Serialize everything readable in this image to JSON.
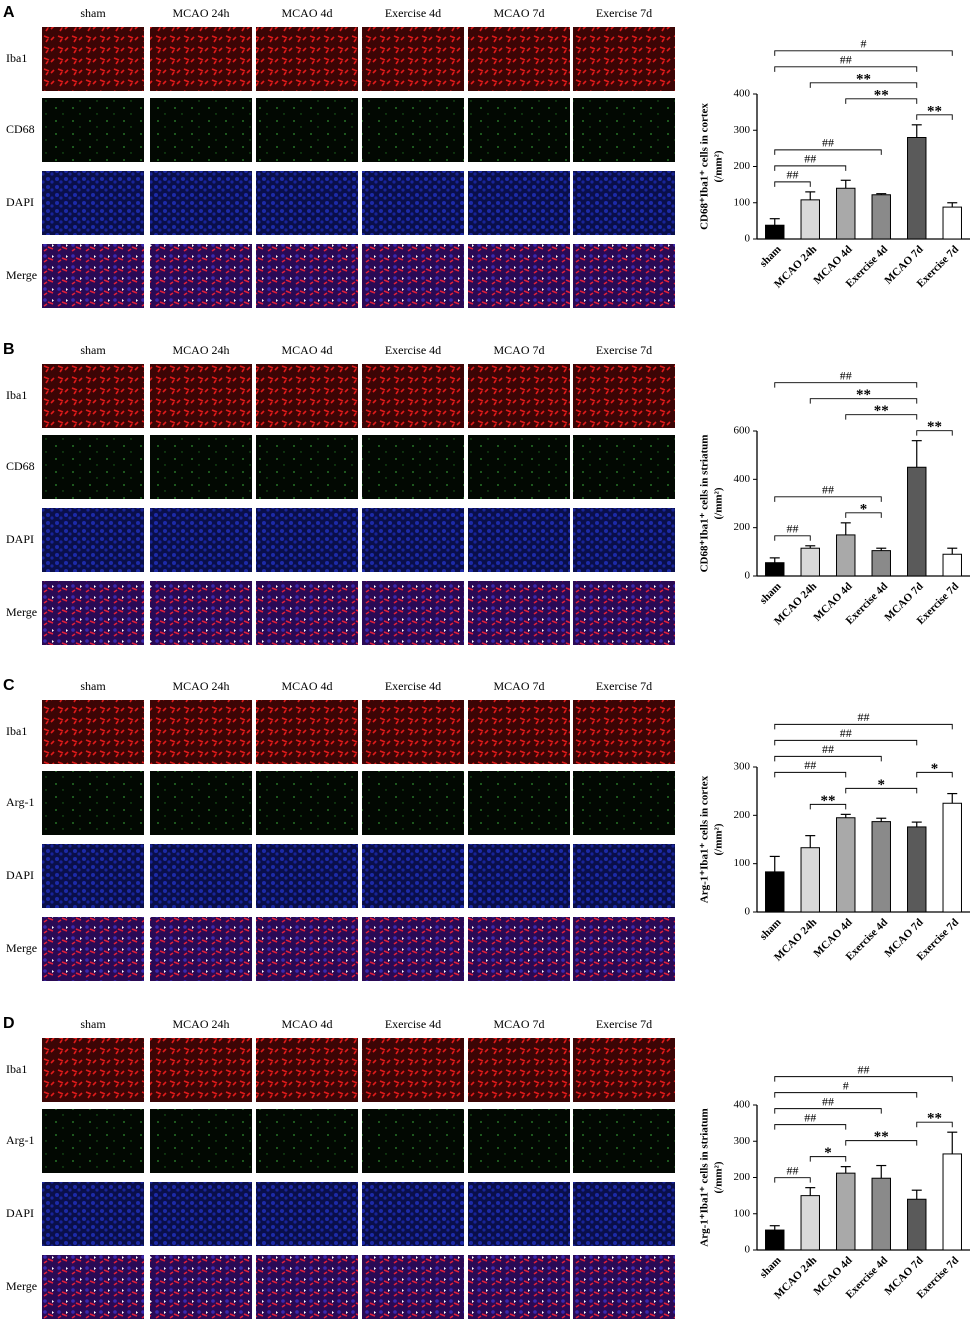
{
  "panels": [
    {
      "label": "A",
      "columns": [
        "sham",
        "MCAO 24h",
        "MCAO 4d",
        "Exercise 4d",
        "MCAO 7d",
        "Exercise 7d"
      ],
      "rows": [
        "Iba1",
        "CD68",
        "DAPI",
        "Merge"
      ]
    },
    {
      "label": "B",
      "columns": [
        "sham",
        "MCAO 24h",
        "MCAO 4d",
        "Exercise 4d",
        "MCAO 7d",
        "Exercise 7d"
      ],
      "rows": [
        "Iba1",
        "CD68",
        "DAPI",
        "Merge"
      ]
    },
    {
      "label": "C",
      "columns": [
        "sham",
        "MCAO 24h",
        "MCAO 4d",
        "Exercise 4d",
        "MCAO 7d",
        "Exercise 7d"
      ],
      "rows": [
        "Iba1",
        "Arg-1",
        "DAPI",
        "Merge"
      ]
    },
    {
      "label": "D",
      "columns": [
        "sham",
        "MCAO 24h",
        "MCAO 4d",
        "Exercise 4d",
        "MCAO 7d",
        "Exercise 7d"
      ],
      "rows": [
        "Iba1",
        "Arg-1",
        "DAPI",
        "Merge"
      ]
    }
  ],
  "chart_data": [
    {
      "type": "bar",
      "ylabel": "CD68⁺Iba1⁺ cells in cortex",
      "yunit": "(/mm²)",
      "categories": [
        "sham",
        "MCAO 24h",
        "MCAO 4d",
        "Exercise 4d",
        "MCAO 7d",
        "Exercise 7d"
      ],
      "values": [
        38,
        108,
        140,
        122,
        280,
        88
      ],
      "errors": [
        18,
        22,
        22,
        3,
        35,
        12
      ],
      "colors": [
        "#000000",
        "#d9d9d9",
        "#a9a9a9",
        "#8a8a8a",
        "#5a5a5a",
        "#ffffff"
      ],
      "ylim": [
        0,
        400
      ],
      "yticks": [
        0,
        100,
        200,
        300,
        400
      ],
      "brackets": [
        {
          "pair": [
            0,
            1
          ],
          "label": "##"
        },
        {
          "pair": [
            0,
            2
          ],
          "label": "##"
        },
        {
          "pair": [
            0,
            3
          ],
          "label": "##"
        },
        {
          "pair": [
            4,
            5
          ],
          "label": "**"
        },
        {
          "pair": [
            2,
            4
          ],
          "label": "**"
        },
        {
          "pair": [
            1,
            4
          ],
          "label": "**"
        },
        {
          "pair": [
            0,
            4
          ],
          "label": "##"
        },
        {
          "pair": [
            0,
            5
          ],
          "label": "#"
        }
      ]
    },
    {
      "type": "bar",
      "ylabel": "CD68⁺Iba1⁺ cells in striatum",
      "yunit": "(/mm²)",
      "categories": [
        "sham",
        "MCAO 24h",
        "MCAO 4d",
        "Exercise 4d",
        "MCAO 7d",
        "Exercise 7d"
      ],
      "values": [
        55,
        115,
        170,
        105,
        450,
        90
      ],
      "errors": [
        20,
        10,
        50,
        10,
        110,
        25
      ],
      "colors": [
        "#000000",
        "#d9d9d9",
        "#a9a9a9",
        "#8a8a8a",
        "#5a5a5a",
        "#ffffff"
      ],
      "ylim": [
        0,
        600
      ],
      "yticks": [
        0,
        200,
        400,
        600
      ],
      "brackets": [
        {
          "pair": [
            0,
            1
          ],
          "label": "##"
        },
        {
          "pair": [
            2,
            3
          ],
          "label": "*"
        },
        {
          "pair": [
            0,
            3
          ],
          "label": "##"
        },
        {
          "pair": [
            4,
            5
          ],
          "label": "**"
        },
        {
          "pair": [
            2,
            4
          ],
          "label": "**"
        },
        {
          "pair": [
            1,
            4
          ],
          "label": "**"
        },
        {
          "pair": [
            0,
            4
          ],
          "label": "##"
        }
      ]
    },
    {
      "type": "bar",
      "ylabel": "Arg-1⁺Iba1⁺ cells in cortex",
      "yunit": "(/mm²)",
      "categories": [
        "sham",
        "MCAO 24h",
        "MCAO 4d",
        "Exercise 4d",
        "MCAO 7d",
        "Exercise 7d"
      ],
      "values": [
        83,
        133,
        195,
        187,
        176,
        225
      ],
      "errors": [
        32,
        25,
        7,
        7,
        10,
        20
      ],
      "colors": [
        "#000000",
        "#d9d9d9",
        "#a9a9a9",
        "#8a8a8a",
        "#5a5a5a",
        "#ffffff"
      ],
      "ylim": [
        0,
        300
      ],
      "yticks": [
        0,
        100,
        200,
        300
      ],
      "brackets": [
        {
          "pair": [
            1,
            2
          ],
          "label": "**"
        },
        {
          "pair": [
            2,
            4
          ],
          "label": "*"
        },
        {
          "pair": [
            0,
            2
          ],
          "label": "##"
        },
        {
          "pair": [
            4,
            5
          ],
          "label": "*"
        },
        {
          "pair": [
            0,
            3
          ],
          "label": "##"
        },
        {
          "pair": [
            0,
            4
          ],
          "label": "##"
        },
        {
          "pair": [
            0,
            5
          ],
          "label": "##"
        }
      ]
    },
    {
      "type": "bar",
      "ylabel": "Arg-1⁺Iba1⁺ cells in striatum",
      "yunit": "(/mm²)",
      "categories": [
        "sham",
        "MCAO 24h",
        "MCAO 4d",
        "Exercise 4d",
        "MCAO 7d",
        "Exercise 7d"
      ],
      "values": [
        55,
        150,
        212,
        198,
        140,
        265
      ],
      "errors": [
        12,
        22,
        18,
        35,
        25,
        60
      ],
      "colors": [
        "#000000",
        "#d9d9d9",
        "#a9a9a9",
        "#8a8a8a",
        "#5a5a5a",
        "#ffffff"
      ],
      "ylim": [
        0,
        400
      ],
      "yticks": [
        0,
        100,
        200,
        300,
        400
      ],
      "brackets": [
        {
          "pair": [
            0,
            1
          ],
          "label": "##"
        },
        {
          "pair": [
            1,
            2
          ],
          "label": "*"
        },
        {
          "pair": [
            2,
            4
          ],
          "label": "**"
        },
        {
          "pair": [
            0,
            2
          ],
          "label": "##"
        },
        {
          "pair": [
            0,
            3
          ],
          "label": "##"
        },
        {
          "pair": [
            4,
            5
          ],
          "label": "**"
        },
        {
          "pair": [
            0,
            4
          ],
          "label": "#"
        },
        {
          "pair": [
            0,
            5
          ],
          "label": "##"
        }
      ]
    }
  ]
}
